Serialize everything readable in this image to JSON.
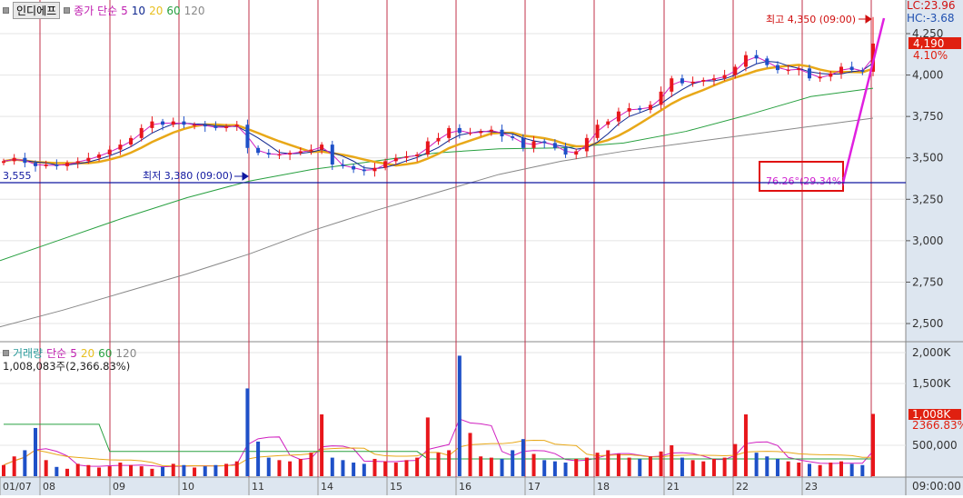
{
  "header": {
    "stock_name": "인디에프",
    "ma_label": "종가 단순",
    "ma_periods": [
      "5",
      "10",
      "20",
      "60",
      "120"
    ]
  },
  "volume_header": {
    "label": "거래량",
    "ma_label": "단순",
    "ma_periods": [
      "5",
      "20",
      "60",
      "120"
    ],
    "current": "1,008,083주(2,366.83%)"
  },
  "right_panel": {
    "lc": "LC:23.96",
    "hc": "HC:-3.68",
    "price_tag": "4,190",
    "price_pct": "4.10%",
    "vol_tag": "1,008K",
    "vol_pct": "2366.83%",
    "time": "09:00:00"
  },
  "annotations": {
    "high": "최고 4,350 (09:00)",
    "low": "최저 3,380 (09:00)",
    "left_value": "3,555",
    "angle": "76.26°(29.34%)"
  },
  "colors": {
    "up": "#e8161b",
    "down": "#1e50c8",
    "ma5": "#d020c0",
    "ma10": "#102890",
    "ma20": "#e8a818",
    "ma60": "#28a040",
    "ma120": "#888888",
    "dayline": "#c0304a",
    "trend": "#e020e0"
  },
  "chart_data": {
    "type": "candlestick",
    "price_axis": {
      "ticks": [
        "4,250",
        "4,000",
        "3,750",
        "3,500",
        "3,250",
        "3,000",
        "2,750",
        "2,500"
      ],
      "range": [
        2430,
        4450
      ]
    },
    "volume_axis": {
      "ticks": [
        "2,000K",
        "1,500K",
        "500,000"
      ],
      "range": [
        0,
        2150
      ]
    },
    "x_labels": [
      "01/07",
      "08",
      "09",
      "10",
      "11",
      "14",
      "15",
      "16",
      "17",
      "18",
      "21",
      "22",
      "23"
    ],
    "closes": [
      3480,
      3500,
      3470,
      3450,
      3460,
      3450,
      3470,
      3480,
      3500,
      3520,
      3550,
      3580,
      3620,
      3680,
      3720,
      3700,
      3720,
      3700,
      3700,
      3690,
      3680,
      3690,
      3700,
      3560,
      3530,
      3520,
      3520,
      3530,
      3540,
      3550,
      3580,
      3460,
      3450,
      3430,
      3420,
      3440,
      3480,
      3500,
      3510,
      3520,
      3600,
      3620,
      3680,
      3650,
      3650,
      3660,
      3670,
      3630,
      3620,
      3560,
      3600,
      3590,
      3560,
      3520,
      3540,
      3620,
      3700,
      3720,
      3780,
      3800,
      3790,
      3820,
      3900,
      3980,
      3950,
      3960,
      3970,
      3980,
      4000,
      4050,
      4120,
      4100,
      4060,
      4030,
      4030,
      4040,
      3980,
      3990,
      4010,
      4050,
      4030,
      4020,
      4190
    ],
    "volumes_k": [
      180,
      320,
      420,
      780,
      260,
      150,
      120,
      200,
      180,
      140,
      160,
      220,
      180,
      160,
      120,
      150,
      200,
      180,
      140,
      160,
      180,
      200,
      240,
      1420,
      560,
      300,
      260,
      240,
      280,
      380,
      1000,
      300,
      260,
      220,
      200,
      280,
      240,
      220,
      260,
      300,
      950,
      380,
      420,
      1950,
      700,
      320,
      300,
      280,
      420,
      600,
      360,
      260,
      240,
      220,
      280,
      300,
      380,
      420,
      360,
      300,
      280,
      320,
      400,
      500,
      300,
      260,
      240,
      280,
      300,
      520,
      1000,
      380,
      320,
      280,
      240,
      220,
      200,
      180,
      220,
      240,
      200,
      180,
      1008
    ],
    "ma60": [
      2880,
      3010,
      3140,
      3260,
      3360,
      3430,
      3480,
      3530,
      3555,
      3560,
      3590,
      3660,
      3760,
      3870,
      3920
    ],
    "ma120": [
      2480,
      2580,
      2690,
      2800,
      2920,
      3060,
      3180,
      3290,
      3400,
      3480,
      3540,
      3590,
      3640,
      3690,
      3740
    ]
  }
}
